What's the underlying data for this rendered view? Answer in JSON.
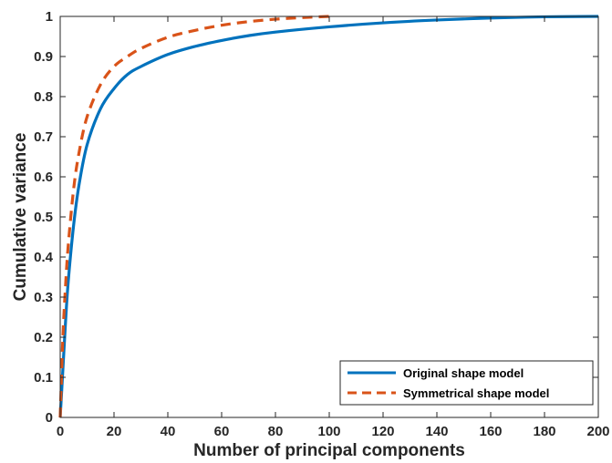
{
  "chart_data": {
    "type": "line",
    "title": "",
    "xlabel": "Number of principal components",
    "ylabel": "Cumulative variance",
    "xlim": [
      0,
      200
    ],
    "ylim": [
      0,
      1
    ],
    "x_ticks": [
      0,
      20,
      40,
      60,
      80,
      100,
      120,
      140,
      160,
      180,
      200
    ],
    "y_ticks": [
      0,
      0.1,
      0.2,
      0.3,
      0.4,
      0.5,
      0.6,
      0.7,
      0.8,
      0.9,
      1
    ],
    "grid": false,
    "legend_position": "bottom-right",
    "series": [
      {
        "name": "Original shape model",
        "color": "#0072BD",
        "style": "solid",
        "x": [
          0,
          1,
          2,
          3,
          5,
          7,
          10,
          15,
          20,
          25,
          30,
          40,
          50,
          60,
          70,
          80,
          100,
          120,
          140,
          160,
          180,
          200
        ],
        "y": [
          0,
          0.12,
          0.24,
          0.34,
          0.48,
          0.58,
          0.68,
          0.77,
          0.82,
          0.855,
          0.875,
          0.905,
          0.925,
          0.94,
          0.952,
          0.961,
          0.974,
          0.984,
          0.991,
          0.996,
          0.999,
          1.0
        ]
      },
      {
        "name": "Symmetrical shape model",
        "color": "#D95319",
        "style": "dashed",
        "x": [
          0,
          1,
          2,
          3,
          5,
          7,
          10,
          15,
          20,
          25,
          30,
          40,
          50,
          60,
          70,
          80,
          90,
          100
        ],
        "y": [
          0,
          0.2,
          0.33,
          0.43,
          0.57,
          0.66,
          0.75,
          0.83,
          0.875,
          0.9,
          0.92,
          0.948,
          0.965,
          0.978,
          0.987,
          0.993,
          0.997,
          1.0
        ]
      }
    ]
  }
}
